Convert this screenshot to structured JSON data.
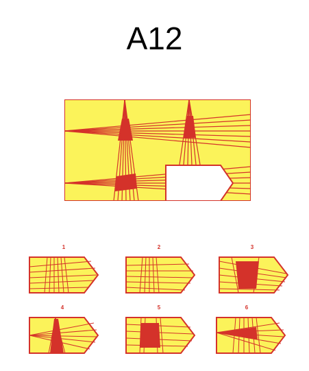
{
  "title": "A12",
  "colors": {
    "yellow": "#fbf35a",
    "red": "#d4322a",
    "white": "#ffffff"
  },
  "options": [
    {
      "label": "1",
      "pattern": "crossing-lines"
    },
    {
      "label": "2",
      "pattern": "crossing-lines"
    },
    {
      "label": "3",
      "pattern": "filled-trapezoid"
    },
    {
      "label": "4",
      "pattern": "filled-vertical-triangle"
    },
    {
      "label": "5",
      "pattern": "filled-square"
    },
    {
      "label": "6",
      "pattern": "filled-horizontal-triangle"
    }
  ]
}
